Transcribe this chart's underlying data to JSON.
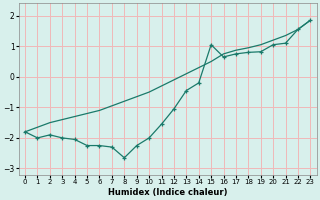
{
  "xlabel": "Humidex (Indice chaleur)",
  "ylabel": "",
  "background_color": "#d8f0ec",
  "grid_color": "#f0b8b8",
  "line_color": "#1a7a6a",
  "xlim": [
    -0.5,
    23.5
  ],
  "ylim": [
    -3.2,
    2.4
  ],
  "xticks": [
    0,
    1,
    2,
    3,
    4,
    5,
    6,
    7,
    8,
    9,
    10,
    11,
    12,
    13,
    14,
    15,
    16,
    17,
    18,
    19,
    20,
    21,
    22,
    23
  ],
  "yticks": [
    -3,
    -2,
    -1,
    0,
    1,
    2
  ],
  "line1_x": [
    0,
    1,
    2,
    3,
    4,
    5,
    6,
    7,
    8,
    9,
    10,
    11,
    12,
    13,
    14,
    15,
    16,
    17,
    18,
    19,
    20,
    21,
    22,
    23
  ],
  "line1_y": [
    -1.8,
    -2.0,
    -1.9,
    -2.0,
    -2.05,
    -2.25,
    -2.25,
    -2.3,
    -2.65,
    -2.25,
    -2.0,
    -1.55,
    -1.05,
    -0.45,
    -0.2,
    1.05,
    0.65,
    0.75,
    0.8,
    0.82,
    1.05,
    1.1,
    1.55,
    1.85
  ],
  "line2_x": [
    0,
    1,
    2,
    3,
    4,
    5,
    6,
    7,
    8,
    9,
    10,
    11,
    12,
    13,
    14,
    15,
    16,
    17,
    18,
    19,
    20,
    21,
    22,
    23
  ],
  "line2_y": [
    -1.8,
    -1.65,
    -1.5,
    -1.4,
    -1.3,
    -1.2,
    -1.1,
    -0.95,
    -0.8,
    -0.65,
    -0.5,
    -0.3,
    -0.1,
    0.1,
    0.3,
    0.5,
    0.75,
    0.87,
    0.95,
    1.05,
    1.2,
    1.35,
    1.55,
    1.85
  ]
}
